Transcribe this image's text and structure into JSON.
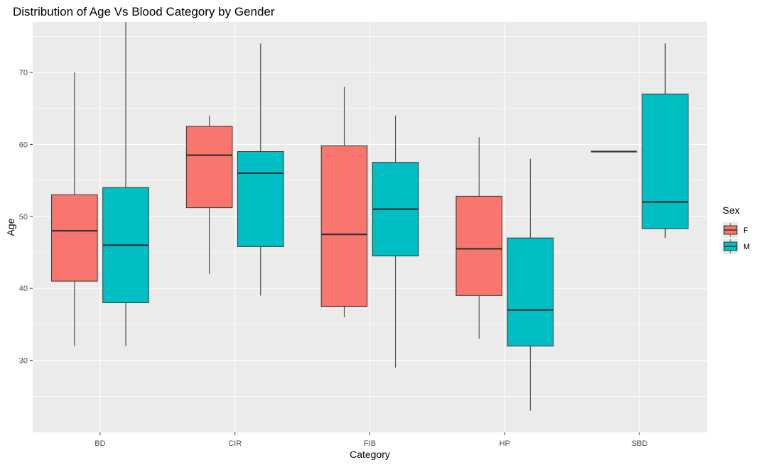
{
  "chart_data": {
    "type": "box",
    "title": "Distribution of Age Vs Blood Category by Gender",
    "xlabel": "Category",
    "ylabel": "Age",
    "ylim": [
      20,
      77
    ],
    "y_ticks": [
      30,
      40,
      50,
      60,
      70
    ],
    "categories": [
      "BD",
      "CIR",
      "FIB",
      "HP",
      "SBD"
    ],
    "grid": true,
    "legend": {
      "title": "Sex",
      "placement": "right"
    },
    "series": [
      {
        "name": "F",
        "color": "#F8766D",
        "boxes": [
          {
            "category": "BD",
            "min": 32,
            "q1": 41,
            "median": 48,
            "q3": 53,
            "max": 70
          },
          {
            "category": "CIR",
            "min": 42,
            "q1": 51.2,
            "median": 58.5,
            "q3": 62.5,
            "max": 64
          },
          {
            "category": "FIB",
            "min": 36,
            "q1": 37.5,
            "median": 47.5,
            "q3": 59.8,
            "max": 68
          },
          {
            "category": "HP",
            "min": 33,
            "q1": 39,
            "median": 45.5,
            "q3": 52.8,
            "max": 61
          },
          {
            "category": "SBD",
            "min": 59,
            "q1": 59,
            "median": 59,
            "q3": 59,
            "max": 59
          }
        ]
      },
      {
        "name": "M",
        "color": "#00BFC4",
        "boxes": [
          {
            "category": "BD",
            "min": 32,
            "q1": 38,
            "median": 46,
            "q3": 54,
            "max": 77
          },
          {
            "category": "CIR",
            "min": 39,
            "q1": 45.8,
            "median": 56,
            "q3": 59,
            "max": 74
          },
          {
            "category": "FIB",
            "min": 29,
            "q1": 44.5,
            "median": 51,
            "q3": 57.5,
            "max": 64
          },
          {
            "category": "HP",
            "min": 23,
            "q1": 32,
            "median": 37,
            "q3": 47,
            "max": 58
          },
          {
            "category": "SBD",
            "min": 47,
            "q1": 48.3,
            "median": 52,
            "q3": 67,
            "max": 74
          }
        ]
      }
    ]
  }
}
